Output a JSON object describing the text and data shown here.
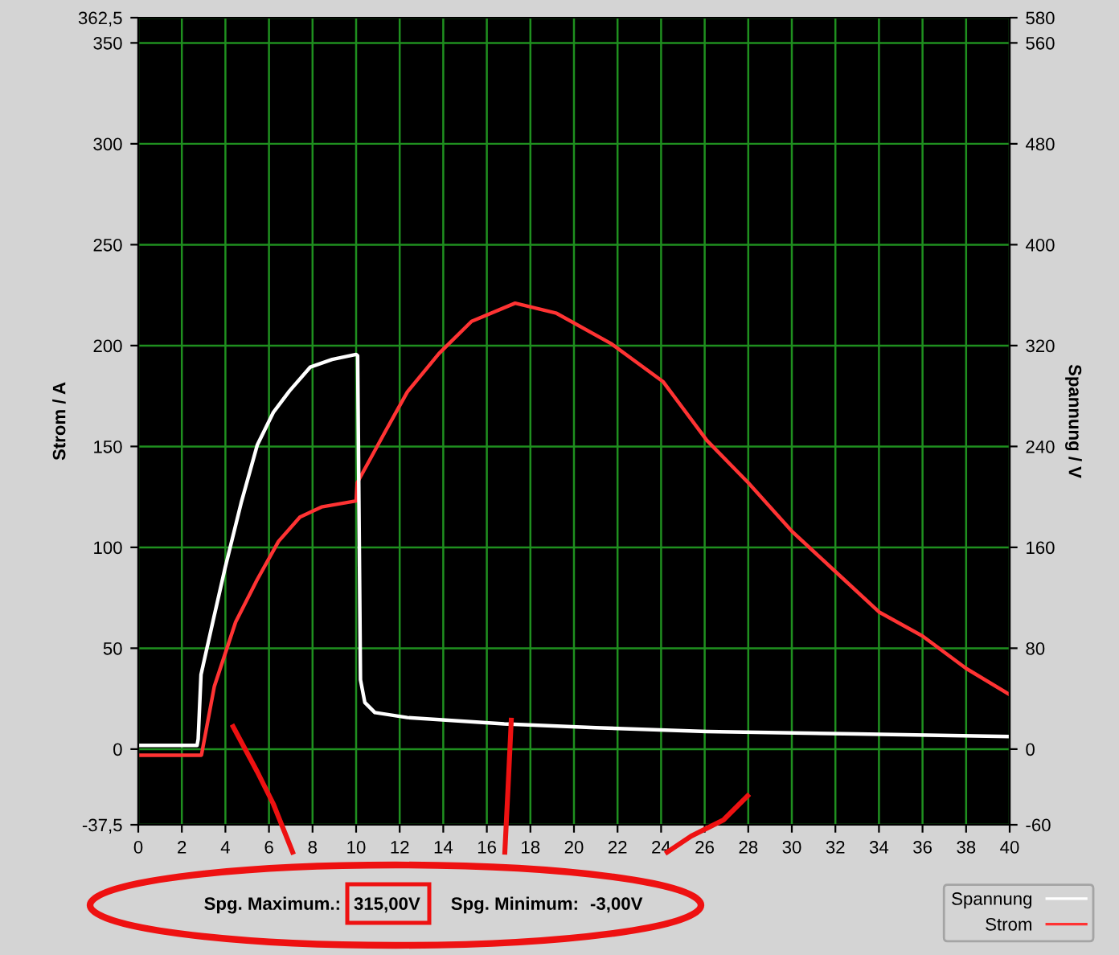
{
  "chart_data": {
    "type": "line",
    "xlabel": null,
    "ylabel": "Strom / A",
    "y2label": "Spannung / V",
    "xlim": [
      0,
      40
    ],
    "xticks": [
      0,
      2,
      4,
      6,
      8,
      10,
      12,
      14,
      16,
      18,
      20,
      22,
      24,
      26,
      28,
      30,
      32,
      34,
      36,
      38,
      40
    ],
    "ylim": [
      -37.5,
      362.5
    ],
    "yticks": [
      {
        "value": -37.5,
        "label": "-37,5"
      },
      0,
      50,
      100,
      150,
      200,
      250,
      300,
      350,
      {
        "value": 362.5,
        "label": "362,5"
      }
    ],
    "y2lim": [
      -60,
      580
    ],
    "y2ticks": [
      -60,
      0,
      80,
      160,
      240,
      320,
      400,
      480,
      560,
      580
    ],
    "grid": true,
    "legend": "bottom right",
    "series": [
      {
        "name": "Spannung",
        "color": "#ffffff",
        "axis": "y2",
        "x": [
          0,
          2.7,
          2.75,
          2.88,
          3.49,
          3.99,
          4.72,
          5.46,
          6.2,
          6.94,
          7.9,
          8.9,
          10.0,
          10.07,
          10.2,
          10.4,
          10.86,
          12.35,
          16.8,
          21,
          26.1,
          33,
          40
        ],
        "values": [
          3,
          3,
          8,
          59,
          106,
          144,
          195,
          241,
          267,
          284,
          303,
          309,
          313,
          312,
          55,
          37,
          29,
          25,
          20,
          17,
          14,
          12,
          10
        ]
      },
      {
        "name": "Strom",
        "color": "#ff3333",
        "axis": "y",
        "x": [
          0,
          2.8,
          2.9,
          3.49,
          4.47,
          5.46,
          6.44,
          7.42,
          8.41,
          10.0,
          10.05,
          11.37,
          12.35,
          13.8,
          15.3,
          17.3,
          19.2,
          21.7,
          24.1,
          26.1,
          28,
          30,
          32,
          34,
          36,
          38,
          40
        ],
        "values": [
          -3,
          -3,
          -3,
          31,
          63,
          84,
          103,
          115,
          120,
          123,
          132,
          158,
          177,
          196,
          212,
          221,
          216,
          201,
          182,
          153,
          132,
          108,
          88,
          68,
          56,
          40,
          27
        ]
      }
    ],
    "annotations": [
      "Spg. Maximum.:",
      "315,00V",
      "Spg. Minimum:",
      "-3,00V"
    ]
  }
}
